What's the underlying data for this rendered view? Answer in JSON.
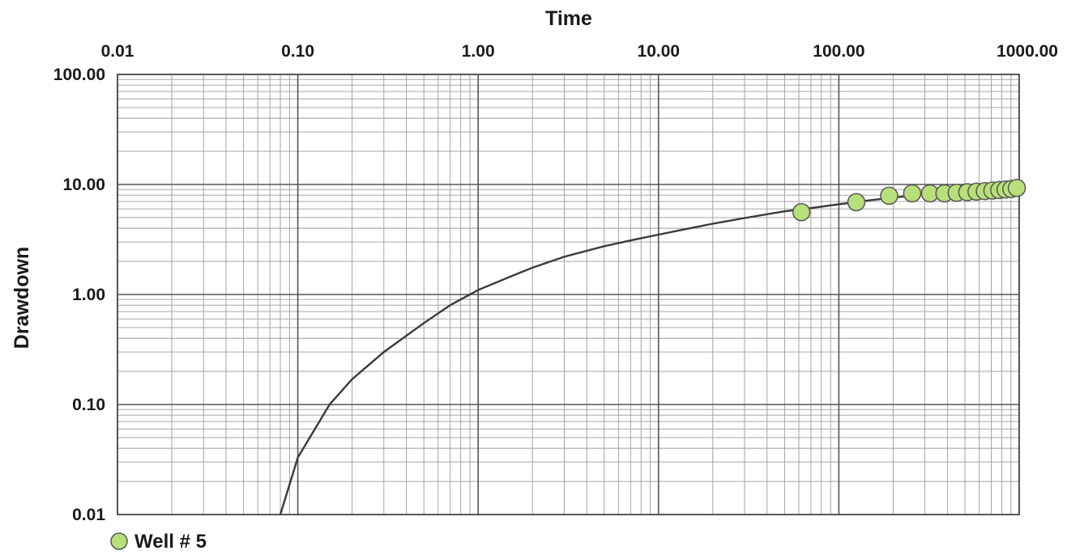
{
  "chart_data": {
    "type": "scatter",
    "title": "",
    "xlabel": "Time",
    "ylabel": "Drawdown",
    "x_scale": "log",
    "y_scale": "log",
    "xlim": [
      0.01,
      1000
    ],
    "ylim": [
      0.01,
      100
    ],
    "x_ticks": [
      0.01,
      0.1,
      1,
      10,
      100,
      1000
    ],
    "x_tick_labels": [
      "0.01",
      "0.10",
      "1.00",
      "10.00",
      "100.00",
      "1000.00"
    ],
    "y_ticks": [
      0.01,
      0.1,
      1,
      10,
      100
    ],
    "y_tick_labels": [
      "0.01",
      "0.10",
      "1.00",
      "10.00",
      "100.00"
    ],
    "x_axis_position": "top",
    "grid": true,
    "legend_position": "bottom-left",
    "series": [
      {
        "name": "Well # 5",
        "kind": "points",
        "color": "#b8e07a",
        "edge_color": "#555555",
        "x": [
          62,
          125,
          190,
          255,
          320,
          385,
          450,
          515,
          580,
          645,
          710,
          775,
          840,
          905,
          970
        ],
        "y": [
          5.6,
          6.9,
          7.9,
          8.3,
          8.3,
          8.3,
          8.4,
          8.5,
          8.6,
          8.7,
          8.8,
          8.9,
          9.0,
          9.1,
          9.3
        ]
      },
      {
        "kind": "curve",
        "color": "#3a3a3a",
        "x": [
          0.08,
          0.1,
          0.15,
          0.2,
          0.3,
          0.5,
          0.7,
          1,
          1.5,
          2,
          3,
          5,
          7,
          10,
          15,
          20,
          30,
          50,
          70,
          100,
          150,
          200,
          300,
          500,
          700,
          1000
        ],
        "y": [
          0.01,
          0.033,
          0.1,
          0.17,
          0.3,
          0.55,
          0.8,
          1.1,
          1.45,
          1.75,
          2.2,
          2.75,
          3.1,
          3.5,
          4.0,
          4.4,
          4.95,
          5.7,
          6.1,
          6.6,
          7.2,
          7.6,
          8.1,
          8.8,
          9.3,
          9.8
        ]
      }
    ]
  }
}
